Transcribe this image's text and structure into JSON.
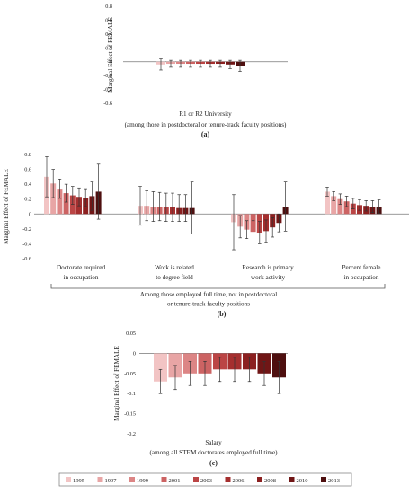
{
  "legend": {
    "years": [
      "1995",
      "1997",
      "1999",
      "2001",
      "2003",
      "2006",
      "2008",
      "2010",
      "2013"
    ],
    "colors": [
      "#f2c4c4",
      "#e8a5a5",
      "#dc8585",
      "#cc6363",
      "#bb4545",
      "#a52f2f",
      "#8c2020",
      "#701616",
      "#4e0f0f"
    ],
    "placement": "bottom"
  },
  "chart_data": [
    {
      "id": "a",
      "type": "bar",
      "panel_label": "(a)",
      "ylabel": "Marginal Effect of FEMALE",
      "ylim": [
        -0.6,
        0.8
      ],
      "yticks": [
        "-0.6",
        "-0.4",
        "-0.2",
        "0",
        "0.2",
        "0.4",
        "0.6",
        "0.8"
      ],
      "grid": false,
      "categories": [
        [
          "R1 or R2 University",
          "(among those in postdoctoral or tenure-track faculty positions)"
        ]
      ],
      "values": [
        [
          -0.04,
          -0.03,
          -0.03,
          -0.03,
          -0.03,
          -0.03,
          -0.03,
          -0.04,
          -0.06
        ]
      ],
      "errors": [
        [
          0.08,
          0.05,
          0.05,
          0.05,
          0.05,
          0.05,
          0.05,
          0.06,
          0.08
        ]
      ]
    },
    {
      "id": "b",
      "type": "bar",
      "panel_label": "(b)",
      "ylabel": "Marginal Effect of FEMALE",
      "ylim": [
        -0.6,
        0.8
      ],
      "yticks": [
        "-0.6",
        "-0.4",
        "-0.2",
        "0",
        "0.2",
        "0.4",
        "0.6",
        "0.8"
      ],
      "grid": false,
      "categories": [
        [
          "Doctorate required",
          "in occupation"
        ],
        [
          "Work is related",
          "to degree field"
        ],
        [
          "Research is primary",
          "work activity"
        ],
        [
          "Percent female",
          "in occupation"
        ]
      ],
      "group_caption": [
        "Among those employed full time, not in  postdoctoral",
        "or tenure-track faculty positions"
      ],
      "values": [
        [
          0.5,
          0.41,
          0.34,
          0.28,
          0.25,
          0.23,
          0.22,
          0.24,
          0.3
        ],
        [
          0.11,
          0.11,
          0.1,
          0.1,
          0.09,
          0.09,
          0.08,
          0.08,
          0.08
        ],
        [
          -0.11,
          -0.17,
          -0.21,
          -0.24,
          -0.25,
          -0.23,
          -0.18,
          -0.12,
          0.1
        ],
        [
          0.3,
          0.24,
          0.2,
          0.17,
          0.14,
          0.12,
          0.11,
          0.1,
          0.1
        ]
      ],
      "errors": [
        [
          0.27,
          0.19,
          0.13,
          0.12,
          0.12,
          0.12,
          0.12,
          0.19,
          0.37
        ],
        [
          0.26,
          0.2,
          0.2,
          0.19,
          0.19,
          0.19,
          0.18,
          0.18,
          0.35
        ],
        [
          0.37,
          0.15,
          0.12,
          0.15,
          0.15,
          0.15,
          0.13,
          0.12,
          0.33
        ],
        [
          0.06,
          0.06,
          0.07,
          0.07,
          0.07,
          0.07,
          0.07,
          0.08,
          0.09
        ]
      ]
    },
    {
      "id": "c",
      "type": "bar",
      "panel_label": "(c)",
      "ylabel": "Marginal Effect of FEMALE",
      "ylim": [
        -0.2,
        0.05
      ],
      "yticks": [
        "-0.2",
        "-0.15",
        "-0.1",
        "-0.05",
        "0",
        "0.05"
      ],
      "grid": false,
      "categories": [
        [
          "Salary",
          "(among all STEM doctorates employed full time)"
        ]
      ],
      "values": [
        [
          -0.07,
          -0.06,
          -0.05,
          -0.05,
          -0.04,
          -0.04,
          -0.04,
          -0.05,
          -0.06
        ]
      ],
      "errors": [
        [
          0.03,
          0.03,
          0.03,
          0.03,
          0.03,
          0.03,
          0.03,
          0.03,
          0.04
        ]
      ]
    }
  ]
}
